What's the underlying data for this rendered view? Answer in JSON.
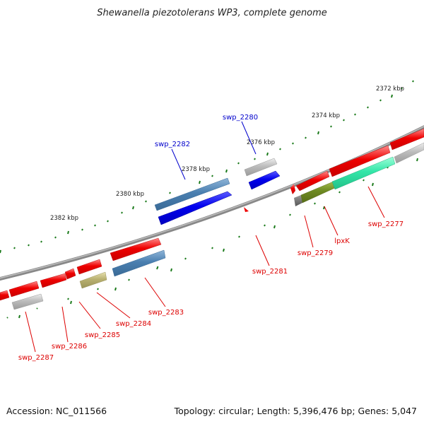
{
  "title": "Shewanella piezotolerans WP3, complete genome",
  "footer": {
    "accession": "Accession: NC_011566",
    "summary": "Topology: circular; Length: 5,396,476 bp; Genes: 5,047"
  },
  "scale_labels": [
    "2372 kbp",
    "2374 kbp",
    "2376 kbp",
    "2378 kbp",
    "2380 kbp",
    "2382 kbp"
  ],
  "gene_labels": {
    "swp_2280": "swp_2280",
    "swp_2282": "swp_2282",
    "swp_2281": "swp_2281",
    "swp_2279": "swp_2279",
    "lpxK": "lpxK",
    "swp_2277": "swp_2277",
    "swp_2283": "swp_2283",
    "swp_2284": "swp_2284",
    "swp_2285": "swp_2285",
    "swp_2286": "swp_2286",
    "swp_2287": "swp_2287"
  },
  "colors": {
    "forward_label": "#0000cc",
    "reverse_label": "#dd0000",
    "backbone": "#808080",
    "tick": "#1a7a1a",
    "red_gene": "#ee0000",
    "blue_gene": "#0000ee",
    "steel_gene": "#4a7fb0",
    "gray_gene": "#b8b8b8",
    "olive_gene": "#6e8a22",
    "teal_gene": "#33e6a8",
    "khaki_gene": "#b8b070"
  }
}
